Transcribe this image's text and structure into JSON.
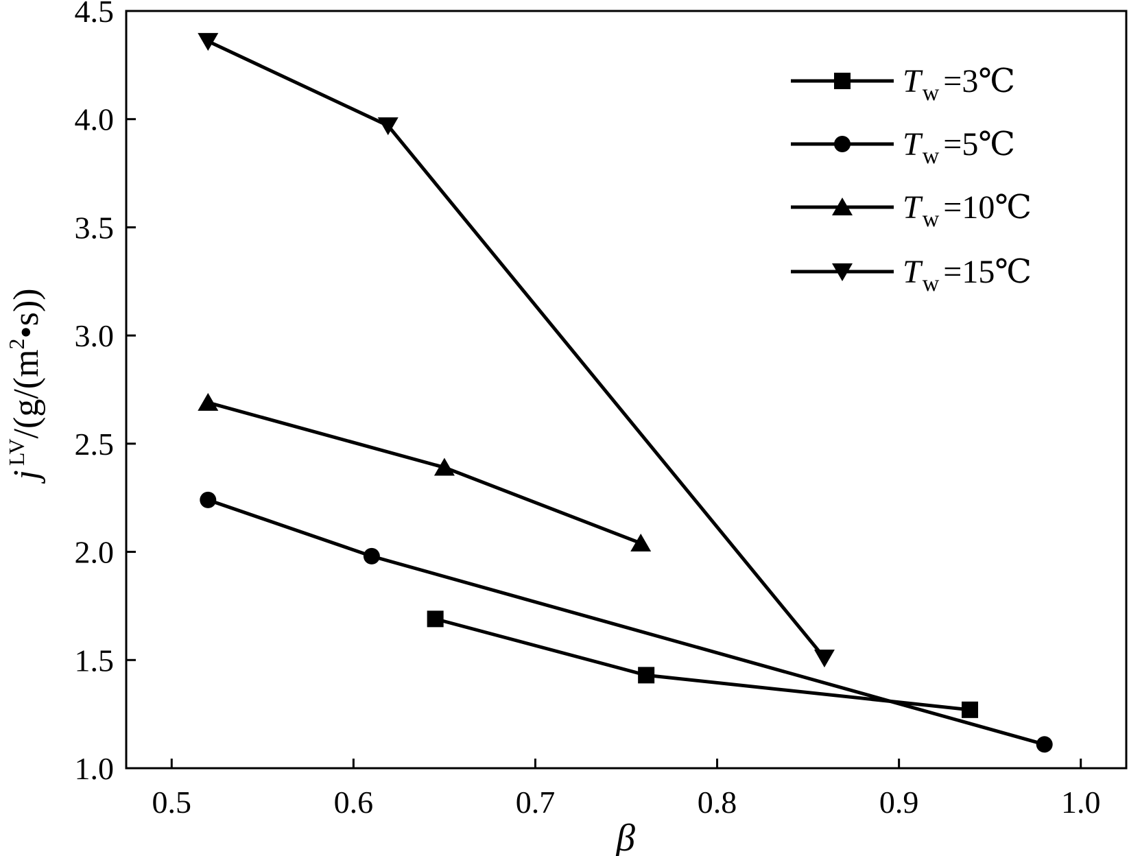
{
  "chart_data": {
    "type": "line",
    "xlabel": "β",
    "ylabel": {
      "symbol": "j",
      "superscript": "LV",
      "unit_before": "/(g/(m",
      "unit_power": "2",
      "unit_after": "•s))"
    },
    "xlim": [
      0.475,
      1.025
    ],
    "ylim": [
      1.0,
      4.5
    ],
    "xticks": [
      "0.5",
      "0.6",
      "0.7",
      "0.8",
      "0.9",
      "1.0"
    ],
    "yticks": [
      "1.0",
      "1.5",
      "2.0",
      "2.5",
      "3.0",
      "3.5",
      "4.0",
      "4.5"
    ],
    "grid": false,
    "legend_position": "top-right",
    "series": [
      {
        "name": "=3℃",
        "label_symbol": "T",
        "label_subscript": "w",
        "marker": "square",
        "x": [
          0.645,
          0.761,
          0.939
        ],
        "y": [
          1.69,
          1.43,
          1.27
        ]
      },
      {
        "name": "=5℃",
        "label_symbol": "T",
        "label_subscript": "w",
        "marker": "circle",
        "x": [
          0.52,
          0.61,
          0.98
        ],
        "y": [
          2.24,
          1.98,
          1.11
        ]
      },
      {
        "name": "=10℃",
        "label_symbol": "T",
        "label_subscript": "w",
        "marker": "triangle-up",
        "x": [
          0.52,
          0.65,
          0.758
        ],
        "y": [
          2.69,
          2.39,
          2.04
        ]
      },
      {
        "name": "=15℃",
        "label_symbol": "T",
        "label_subscript": "w",
        "marker": "triangle-down",
        "x": [
          0.52,
          0.619,
          0.859
        ],
        "y": [
          4.36,
          3.97,
          1.51
        ]
      }
    ]
  }
}
